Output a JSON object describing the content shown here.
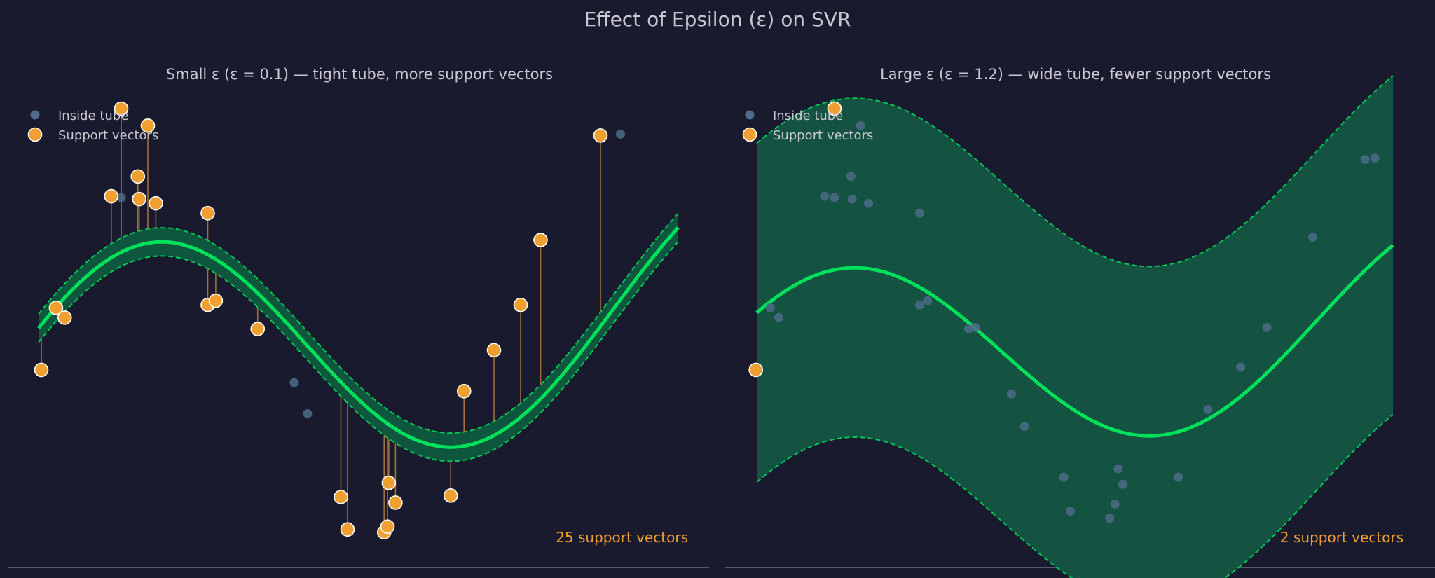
{
  "figure": {
    "title": "Effect of Epsilon (ε) on SVR"
  },
  "colors": {
    "background": "#1a1a2e",
    "curve": "#00e05a",
    "tube_edge": "#00c855",
    "tube_fill_left": "#00a050",
    "tube_fill_right": "#145241",
    "support_vector": "#f0a030",
    "inside_point": "#4d6b8a",
    "residual_line": "#a0703a",
    "text": "#c8c8d0",
    "count_text": "#f0a030",
    "axis_line": "#555a6e"
  },
  "chart_data": [
    {
      "type": "scatter",
      "title": "Small ε (ε = 0.1) — tight tube, more support vectors",
      "epsilon": 0.1,
      "xlim": [
        0,
        10
      ],
      "ylim": [
        -1.6,
        1.6
      ],
      "grid": false,
      "legend": {
        "position": "top-left",
        "entries": [
          "Inside tube",
          "Support vectors"
        ]
      },
      "model_curve": {
        "amplitude": 0.85,
        "frequency": 0.68,
        "phase": 0.3,
        "trend": 0.055,
        "offset": -0.35
      },
      "inside_points": [
        {
          "x": 1.4,
          "y": 0.92
        },
        {
          "x": 4.0,
          "y": -0.39
        },
        {
          "x": 4.2,
          "y": -0.61
        },
        {
          "x": 8.9,
          "y": 1.37
        }
      ],
      "support_vectors": [
        {
          "x": 0.2,
          "y": -0.3
        },
        {
          "x": 0.42,
          "y": 0.14
        },
        {
          "x": 0.55,
          "y": 0.07
        },
        {
          "x": 1.25,
          "y": 0.93
        },
        {
          "x": 1.4,
          "y": 1.55
        },
        {
          "x": 1.65,
          "y": 1.07
        },
        {
          "x": 1.67,
          "y": 0.91
        },
        {
          "x": 1.8,
          "y": 1.43
        },
        {
          "x": 1.92,
          "y": 0.88
        },
        {
          "x": 2.7,
          "y": 0.81
        },
        {
          "x": 2.7,
          "y": 0.16
        },
        {
          "x": 2.82,
          "y": 0.19
        },
        {
          "x": 3.45,
          "y": -0.01
        },
        {
          "x": 4.7,
          "y": -1.2
        },
        {
          "x": 4.8,
          "y": -1.43
        },
        {
          "x": 5.35,
          "y": -1.45
        },
        {
          "x": 5.4,
          "y": -1.41
        },
        {
          "x": 5.42,
          "y": -1.1
        },
        {
          "x": 5.52,
          "y": -1.24
        },
        {
          "x": 6.35,
          "y": -1.19
        },
        {
          "x": 6.55,
          "y": -0.45
        },
        {
          "x": 7.0,
          "y": -0.16
        },
        {
          "x": 7.4,
          "y": 0.16
        },
        {
          "x": 7.7,
          "y": 0.62
        },
        {
          "x": 8.6,
          "y": 1.36
        }
      ],
      "annotation": "25 support vectors"
    },
    {
      "type": "scatter",
      "title": "Large ε (ε = 1.2) — wide tube, fewer support vectors",
      "epsilon": 1.2,
      "xlim": [
        0,
        10
      ],
      "ylim": [
        -1.6,
        1.6
      ],
      "grid": false,
      "legend": {
        "position": "top-left",
        "entries": [
          "Inside tube",
          "Support vectors"
        ]
      },
      "model_curve": {
        "amplitude": 0.7,
        "frequency": 0.655,
        "phase": 0.55,
        "trend": 0.045,
        "offset": -0.35
      },
      "inside_points": [
        {
          "x": 0.42,
          "y": 0.14
        },
        {
          "x": 0.55,
          "y": 0.07
        },
        {
          "x": 1.25,
          "y": 0.93
        },
        {
          "x": 1.4,
          "y": 0.92
        },
        {
          "x": 1.65,
          "y": 1.07
        },
        {
          "x": 1.67,
          "y": 0.91
        },
        {
          "x": 1.8,
          "y": 1.43
        },
        {
          "x": 1.92,
          "y": 0.88
        },
        {
          "x": 2.7,
          "y": 0.81
        },
        {
          "x": 2.7,
          "y": 0.16
        },
        {
          "x": 2.82,
          "y": 0.19
        },
        {
          "x": 3.45,
          "y": -0.01
        },
        {
          "x": 3.55,
          "y": 0.0
        },
        {
          "x": 4.1,
          "y": -0.47
        },
        {
          "x": 4.3,
          "y": -0.7
        },
        {
          "x": 4.9,
          "y": -1.06
        },
        {
          "x": 5.0,
          "y": -1.3
        },
        {
          "x": 5.6,
          "y": -1.35
        },
        {
          "x": 5.68,
          "y": -1.25
        },
        {
          "x": 5.73,
          "y": -1.0
        },
        {
          "x": 5.8,
          "y": -1.11
        },
        {
          "x": 6.65,
          "y": -1.06
        },
        {
          "x": 7.1,
          "y": -0.58
        },
        {
          "x": 7.6,
          "y": -0.28
        },
        {
          "x": 8.0,
          "y": 0.0
        },
        {
          "x": 8.7,
          "y": 0.64
        },
        {
          "x": 9.5,
          "y": 1.19
        },
        {
          "x": 9.65,
          "y": 1.2
        }
      ],
      "support_vectors": [
        {
          "x": 0.2,
          "y": -0.3
        },
        {
          "x": 1.4,
          "y": 1.55
        }
      ],
      "annotation": "2 support vectors"
    }
  ]
}
